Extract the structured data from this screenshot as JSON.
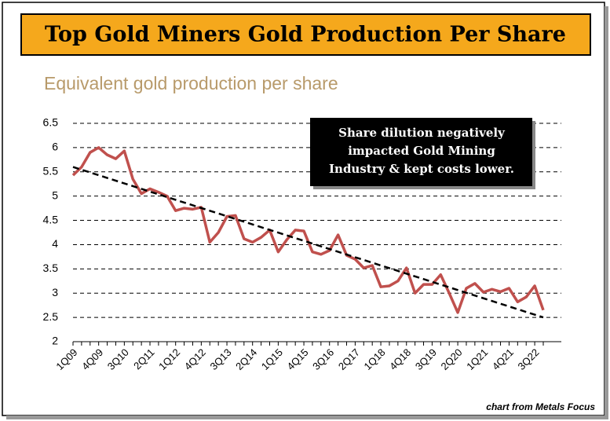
{
  "chart_data": {
    "type": "line",
    "title": "Top Gold Miners Gold Production Per Share",
    "subtitle": "Equivalent gold production per share",
    "annotation": [
      "Share dilution negatively",
      "impacted Gold Mining",
      "Industry & kept costs lower."
    ],
    "source": "chart from Metals Focus",
    "categories": [
      "1Q09",
      null,
      null,
      "4Q09",
      null,
      null,
      "3Q10",
      null,
      null,
      "2Q11",
      null,
      null,
      "1Q12",
      null,
      null,
      "4Q12",
      null,
      null,
      "3Q13",
      null,
      null,
      "2Q14",
      null,
      null,
      "1Q15",
      null,
      null,
      "4Q15",
      null,
      null,
      "3Q16",
      null,
      null,
      "2Q17",
      null,
      null,
      "1Q18",
      null,
      null,
      "4Q18",
      null,
      null,
      "3Q19",
      null,
      null,
      "2Q20",
      null,
      null,
      "1Q21",
      null,
      null,
      "4Q21",
      null,
      null,
      "3Q22",
      null
    ],
    "series": [
      {
        "color": "#c0504d",
        "values": [
          5.43,
          5.6,
          5.9,
          6.0,
          5.85,
          5.77,
          5.93,
          5.35,
          5.05,
          5.15,
          5.08,
          5.0,
          4.7,
          4.75,
          4.73,
          4.77,
          4.05,
          4.25,
          4.58,
          4.6,
          4.12,
          4.05,
          4.15,
          4.3,
          3.85,
          4.1,
          4.3,
          4.28,
          3.85,
          3.8,
          3.88,
          4.2,
          3.78,
          3.7,
          3.52,
          3.57,
          3.13,
          3.15,
          3.25,
          3.52,
          3.0,
          3.18,
          3.18,
          3.38,
          3.0,
          2.6,
          3.1,
          3.2,
          3.02,
          3.08,
          3.03,
          3.1,
          2.82,
          2.92,
          3.15,
          2.65
        ]
      }
    ],
    "trend": {
      "color": "#000000",
      "values": [
        5.6,
        2.5
      ]
    },
    "ylim": [
      2,
      6.5
    ],
    "yticks": [
      2,
      2.5,
      3,
      3.5,
      4,
      4.5,
      5,
      5.5,
      6,
      6.5
    ],
    "grid": true
  }
}
